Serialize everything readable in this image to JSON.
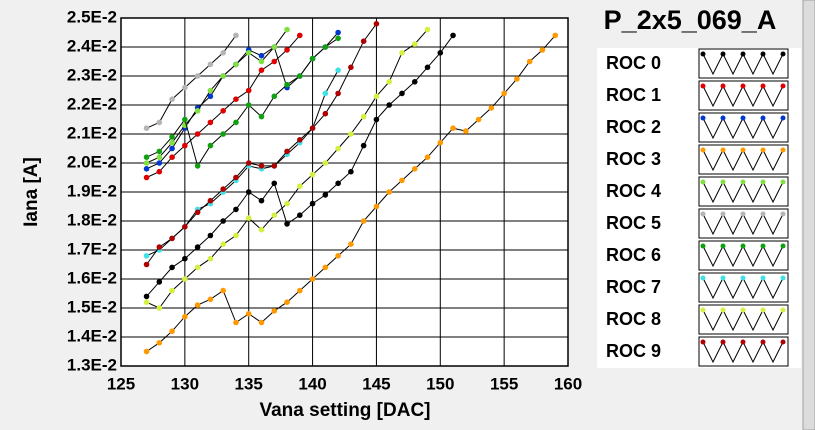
{
  "chart_data": {
    "type": "line",
    "title": "P_2x5_069_A",
    "x_label": "Vana setting [DAC]",
    "y_label": "Iana [A]",
    "xlim": [
      125,
      160
    ],
    "xticks": [
      125,
      130,
      135,
      140,
      145,
      150,
      155,
      160
    ],
    "ylim": [
      0.013,
      0.025
    ],
    "yticks": [
      {
        "value": 0.013,
        "label": "1.3E-2"
      },
      {
        "value": 0.014,
        "label": "1.4E-2"
      },
      {
        "value": 0.015,
        "label": "1.5E-2"
      },
      {
        "value": 0.016,
        "label": "1.6E-2"
      },
      {
        "value": 0.017,
        "label": "1.7E-2"
      },
      {
        "value": 0.018,
        "label": "1.8E-2"
      },
      {
        "value": 0.019,
        "label": "1.9E-2"
      },
      {
        "value": 0.02,
        "label": "2.0E-2"
      },
      {
        "value": 0.021,
        "label": "2.1E-2"
      },
      {
        "value": 0.022,
        "label": "2.2E-2"
      },
      {
        "value": 0.023,
        "label": "2.3E-2"
      },
      {
        "value": 0.024,
        "label": "2.4E-2"
      },
      {
        "value": 0.025,
        "label": "2.5E-2"
      }
    ],
    "grid": true,
    "series": [
      {
        "name": "ROC 0",
        "color": "#000000",
        "x": [
          127,
          128,
          129,
          130,
          131,
          132,
          133,
          134,
          135,
          136,
          137,
          138,
          139,
          140,
          141,
          142,
          143,
          144,
          145,
          146,
          147,
          148,
          149,
          150,
          151
        ],
        "values": [
          0.0154,
          0.0159,
          0.0164,
          0.0167,
          0.0171,
          0.0175,
          0.018,
          0.0184,
          0.019,
          0.0187,
          0.0193,
          0.0179,
          0.0182,
          0.0186,
          0.0189,
          0.0193,
          0.0197,
          0.0206,
          0.0215,
          0.022,
          0.0224,
          0.0228,
          0.0233,
          0.0238,
          0.0244
        ]
      },
      {
        "name": "ROC 1",
        "color": "#e00000",
        "x": [
          127,
          128,
          129,
          130,
          131,
          132,
          133,
          134,
          135,
          136,
          137,
          138,
          139
        ],
        "values": [
          0.0195,
          0.0197,
          0.0202,
          0.0206,
          0.021,
          0.0214,
          0.0218,
          0.0222,
          0.0225,
          0.0232,
          0.0235,
          0.0239,
          0.0244
        ]
      },
      {
        "name": "ROC 2",
        "color": "#0038d0",
        "x": [
          127,
          128,
          129,
          130,
          131,
          132,
          133,
          134,
          135,
          136,
          137,
          138,
          139,
          140,
          141,
          142
        ],
        "values": [
          0.0198,
          0.02,
          0.0205,
          0.0212,
          0.0219,
          0.0223,
          0.023,
          0.0234,
          0.0239,
          0.0237,
          0.024,
          0.0226,
          0.023,
          0.0236,
          0.024,
          0.0245
        ]
      },
      {
        "name": "ROC 3",
        "color": "#ff9900",
        "x": [
          127,
          128,
          129,
          130,
          131,
          132,
          133,
          134,
          135,
          136,
          137,
          138,
          139,
          140,
          141,
          142,
          143,
          144,
          145,
          146,
          147,
          148,
          149,
          150,
          151,
          152,
          153,
          154,
          155,
          156,
          157,
          158,
          159
        ],
        "values": [
          0.0135,
          0.0138,
          0.0142,
          0.0147,
          0.0151,
          0.0153,
          0.0156,
          0.0145,
          0.0148,
          0.0145,
          0.0149,
          0.0152,
          0.0156,
          0.016,
          0.0164,
          0.0168,
          0.0172,
          0.018,
          0.0185,
          0.019,
          0.0194,
          0.0198,
          0.0202,
          0.0207,
          0.0212,
          0.0211,
          0.0215,
          0.0219,
          0.0224,
          0.0229,
          0.0235,
          0.0239,
          0.0244
        ]
      },
      {
        "name": "ROC 4",
        "color": "#80e040",
        "x": [
          127,
          128,
          129,
          130,
          131,
          132,
          133,
          134,
          135,
          136,
          137,
          138
        ],
        "values": [
          0.02,
          0.0202,
          0.0207,
          0.0213,
          0.0218,
          0.0225,
          0.023,
          0.0234,
          0.0238,
          0.0235,
          0.024,
          0.0246
        ]
      },
      {
        "name": "ROC 5",
        "color": "#b4b4b4",
        "x": [
          127,
          128,
          129,
          130,
          131,
          132,
          133,
          134
        ],
        "values": [
          0.0212,
          0.0214,
          0.0222,
          0.0226,
          0.023,
          0.0234,
          0.0238,
          0.0244
        ]
      },
      {
        "name": "ROC 6",
        "color": "#10a010",
        "x": [
          127,
          128,
          129,
          130,
          131,
          132,
          133,
          134,
          135,
          136,
          137,
          138,
          139,
          140,
          141,
          142
        ],
        "values": [
          0.0202,
          0.0204,
          0.0209,
          0.0215,
          0.0199,
          0.0206,
          0.021,
          0.0214,
          0.022,
          0.0216,
          0.0223,
          0.0227,
          0.023,
          0.0236,
          0.024,
          0.0243
        ]
      },
      {
        "name": "ROC 7",
        "color": "#40e0e8",
        "x": [
          127,
          128,
          129,
          130,
          131,
          132,
          133,
          134,
          135,
          136,
          137,
          138,
          139,
          140,
          141,
          142
        ],
        "values": [
          0.0168,
          0.017,
          0.0174,
          0.0178,
          0.0184,
          0.0186,
          0.019,
          0.0194,
          0.0199,
          0.0198,
          0.0199,
          0.0203,
          0.0207,
          0.0212,
          0.0224,
          0.0232
        ]
      },
      {
        "name": "ROC 8",
        "color": "#d4f040",
        "x": [
          127,
          128,
          129,
          130,
          131,
          132,
          133,
          134,
          135,
          136,
          137,
          138,
          139,
          140,
          141,
          142,
          143,
          144,
          145,
          146,
          147,
          148,
          149
        ],
        "values": [
          0.0152,
          0.015,
          0.0156,
          0.016,
          0.0164,
          0.0167,
          0.0172,
          0.0175,
          0.0181,
          0.0177,
          0.0182,
          0.0186,
          0.0192,
          0.0196,
          0.02,
          0.0205,
          0.021,
          0.0216,
          0.0223,
          0.0228,
          0.0238,
          0.0241,
          0.0246
        ]
      },
      {
        "name": "ROC 9",
        "color": "#b00000",
        "x": [
          127,
          128,
          129,
          130,
          131,
          132,
          133,
          134,
          135,
          136,
          137,
          138,
          139,
          140,
          141,
          142,
          143,
          144,
          145
        ],
        "values": [
          0.0165,
          0.0171,
          0.0174,
          0.0178,
          0.0183,
          0.0187,
          0.0191,
          0.0195,
          0.02,
          0.0199,
          0.0199,
          0.0204,
          0.0208,
          0.0212,
          0.0217,
          0.0224,
          0.0233,
          0.0242,
          0.0248
        ]
      }
    ]
  }
}
